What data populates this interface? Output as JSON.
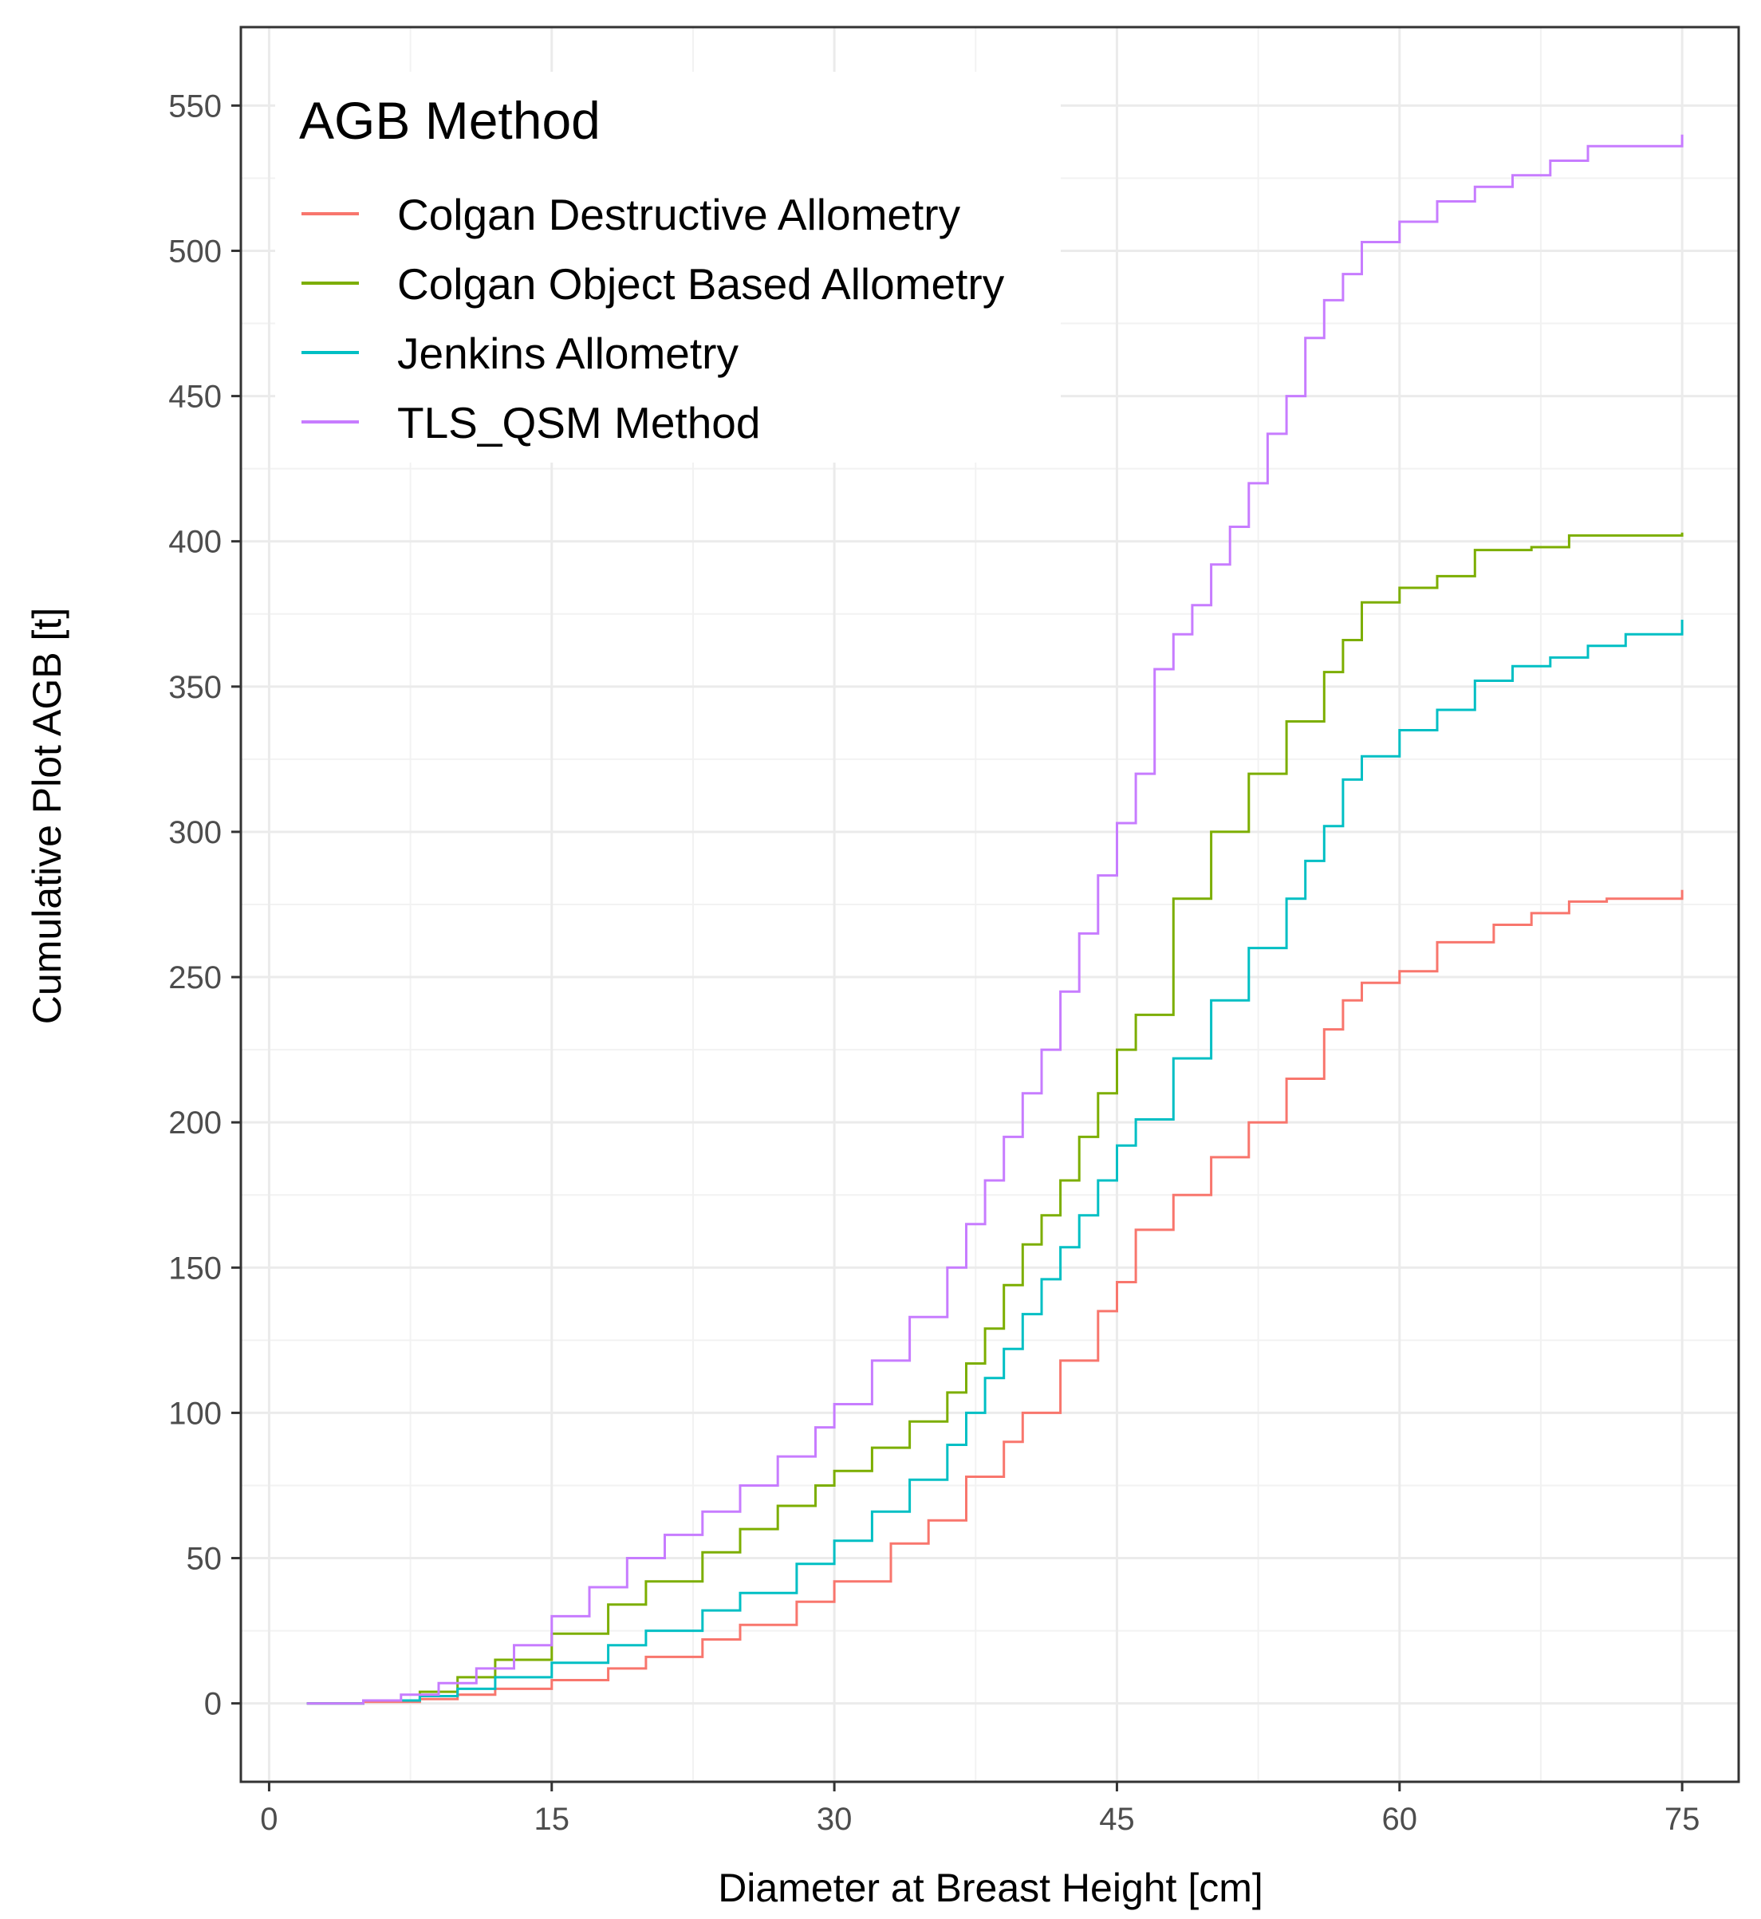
{
  "chart_data": {
    "type": "line",
    "step": true,
    "title": "",
    "xlabel": "Diameter at Breast Height [cm]",
    "ylabel": "Cumulative Plot AGB [t]",
    "xlim": [
      -1.5,
      78
    ],
    "ylim": [
      -27,
      577
    ],
    "x_ticks": [
      0,
      15,
      30,
      45,
      60,
      75
    ],
    "x_tick_labels": [
      "0",
      "15",
      "30",
      "45",
      "60",
      "75"
    ],
    "y_ticks": [
      0,
      50,
      100,
      150,
      200,
      250,
      300,
      350,
      400,
      450,
      500,
      550
    ],
    "y_tick_labels": [
      "0",
      "50",
      "100",
      "150",
      "200",
      "250",
      "300",
      "350",
      "400",
      "450",
      "500",
      "550"
    ],
    "grid": true,
    "legend": {
      "title": "AGB  Method",
      "placement": "top-left",
      "entries": [
        "Colgan  Destructive Allometry",
        "Colgan Object Based Allometry",
        "Jenkins Allometry",
        "TLS_QSM Method"
      ]
    },
    "series": [
      {
        "name": "Colgan  Destructive Allometry",
        "color": "#F8766D",
        "x": [
          2,
          5,
          8,
          10,
          12,
          15,
          18,
          20,
          23,
          25,
          28,
          30,
          33,
          35,
          37,
          39,
          40,
          42,
          44,
          45,
          46,
          48,
          50,
          52,
          54,
          56,
          57,
          58,
          60,
          62,
          65,
          67,
          69,
          71,
          75
        ],
        "values": [
          0,
          0.5,
          1.5,
          3,
          5,
          8,
          12,
          16,
          22,
          27,
          35,
          42,
          55,
          63,
          78,
          90,
          100,
          118,
          135,
          145,
          163,
          175,
          188,
          200,
          215,
          232,
          242,
          248,
          252,
          262,
          268,
          272,
          276,
          277,
          280
        ]
      },
      {
        "name": "Colgan Object Based Allometry",
        "color": "#7CAE00",
        "x": [
          2,
          5,
          8,
          10,
          12,
          15,
          18,
          20,
          23,
          25,
          27,
          29,
          30,
          32,
          34,
          36,
          37,
          38,
          39,
          40,
          41,
          42,
          43,
          44,
          45,
          46,
          48,
          50,
          52,
          54,
          56,
          57,
          58,
          60,
          62,
          64,
          67,
          69,
          75
        ],
        "values": [
          0,
          1,
          4,
          9,
          15,
          24,
          34,
          42,
          52,
          60,
          68,
          75,
          80,
          88,
          97,
          107,
          117,
          129,
          144,
          158,
          168,
          180,
          195,
          210,
          225,
          237,
          277,
          300,
          320,
          338,
          355,
          366,
          379,
          384,
          388,
          397,
          398,
          402,
          403
        ]
      },
      {
        "name": "Jenkins Allometry",
        "color": "#00BFC4",
        "x": [
          2,
          5,
          8,
          10,
          12,
          15,
          18,
          20,
          23,
          25,
          28,
          30,
          32,
          34,
          36,
          37,
          38,
          39,
          40,
          41,
          42,
          43,
          44,
          45,
          46,
          48,
          50,
          52,
          54,
          55,
          56,
          57,
          58,
          60,
          62,
          64,
          66,
          68,
          70,
          72,
          75
        ],
        "values": [
          0,
          1,
          2.5,
          5,
          9,
          14,
          20,
          25,
          32,
          38,
          48,
          56,
          66,
          77,
          89,
          100,
          112,
          122,
          134,
          146,
          157,
          168,
          180,
          192,
          201,
          222,
          242,
          260,
          277,
          290,
          302,
          318,
          326,
          335,
          342,
          352,
          357,
          360,
          364,
          368,
          373
        ]
      },
      {
        "name": "TLS_QSM Method",
        "color": "#C77CFF",
        "x": [
          2,
          5,
          7,
          9,
          11,
          13,
          15,
          17,
          19,
          21,
          23,
          25,
          27,
          29,
          30,
          32,
          34,
          36,
          37,
          38,
          39,
          40,
          41,
          42,
          43,
          44,
          45,
          46,
          47,
          48,
          49,
          50,
          51,
          52,
          53,
          54,
          55,
          56,
          57,
          58,
          60,
          62,
          64,
          66,
          68,
          70,
          75
        ],
        "values": [
          0,
          1,
          3,
          7,
          12,
          20,
          30,
          40,
          50,
          58,
          66,
          75,
          85,
          95,
          103,
          118,
          133,
          150,
          165,
          180,
          195,
          210,
          225,
          245,
          265,
          285,
          303,
          320,
          356,
          368,
          378,
          392,
          405,
          420,
          437,
          450,
          470,
          483,
          492,
          503,
          510,
          517,
          522,
          526,
          531,
          536,
          540
        ]
      }
    ]
  }
}
